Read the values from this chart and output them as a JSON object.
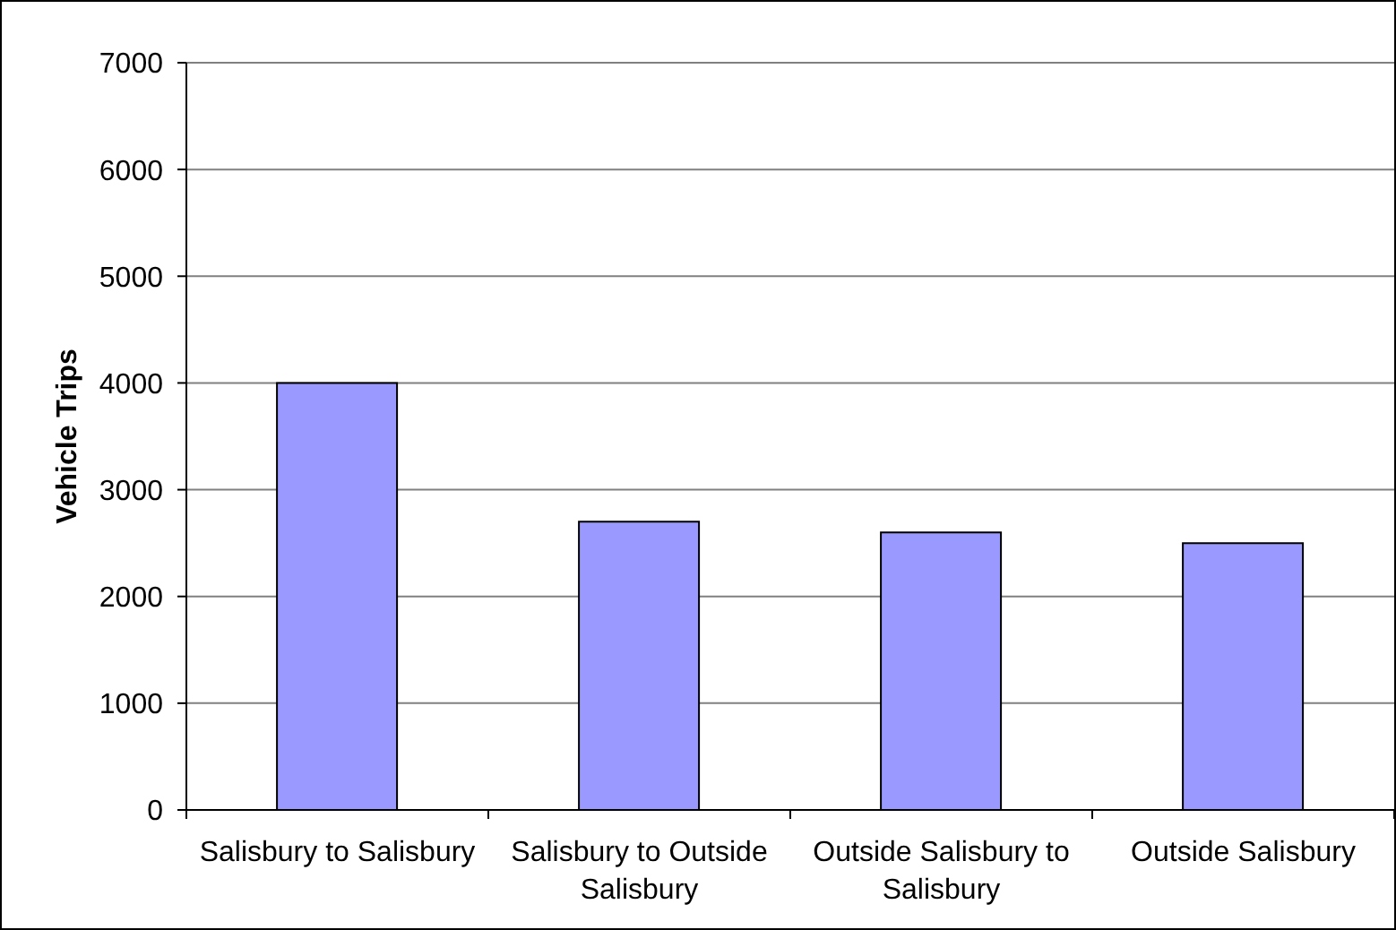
{
  "chart_data": {
    "type": "bar",
    "ylabel": "Vehicle Trips",
    "categories": [
      "Salisbury to Salisbury",
      "Salisbury to Outside Salisbury",
      "Outside Salisbury to Salisbury",
      "Outside Salisbury"
    ],
    "values": [
      4000,
      2700,
      2600,
      2500
    ],
    "color": "#9999ff",
    "ylim": [
      0,
      7000
    ],
    "yticks": [
      0,
      1000,
      2000,
      3000,
      4000,
      5000,
      6000,
      7000
    ],
    "grid": "y"
  }
}
